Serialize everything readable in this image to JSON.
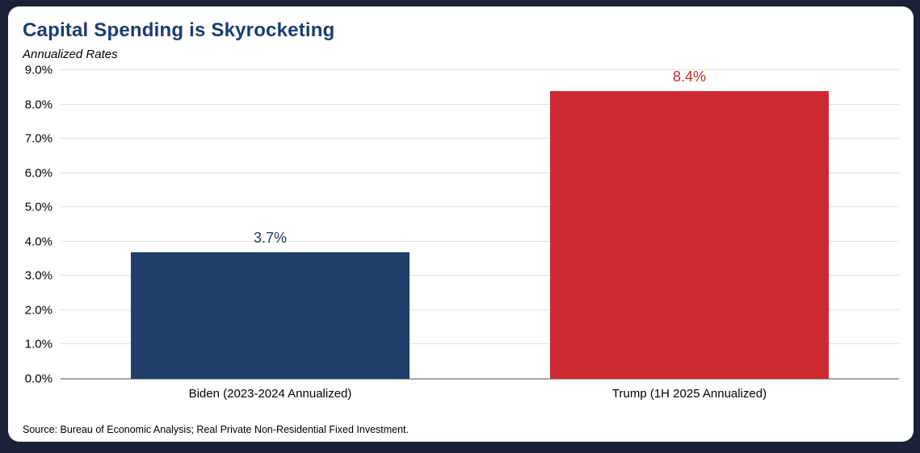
{
  "frame": {
    "background_color": "#1A2138",
    "card_background_color": "#FFFFFF"
  },
  "header": {
    "title": "Capital Spending is Skyrocketing",
    "subtitle": "Annualized Rates",
    "title_color": "#1B3C71"
  },
  "source": {
    "text": "Source: Bureau of Economic Analysis; Real Private Non-Residential Fixed Investment."
  },
  "chart_data": {
    "type": "bar",
    "title": "Capital Spending is Skyrocketing",
    "subtitle": "Annualized Rates",
    "categories": [
      "Biden (2023-2024 Annualized)",
      "Trump (1H 2025 Annualized)"
    ],
    "values": [
      3.7,
      8.4
    ],
    "value_labels": [
      "3.7%",
      "8.4%"
    ],
    "bar_colors": [
      "#213E6A",
      "#CC2A30"
    ],
    "value_label_colors": [
      "#213E6A",
      "#CC2A30"
    ],
    "xlabel": "",
    "ylabel": "",
    "ylim": [
      0,
      9
    ],
    "ytick_step": 1,
    "ytick_labels": [
      "0.0%",
      "1.0%",
      "2.0%",
      "3.0%",
      "4.0%",
      "5.0%",
      "6.0%",
      "7.0%",
      "8.0%",
      "9.0%"
    ],
    "grid": true,
    "legend": false,
    "bar_width_fraction": 0.665
  }
}
